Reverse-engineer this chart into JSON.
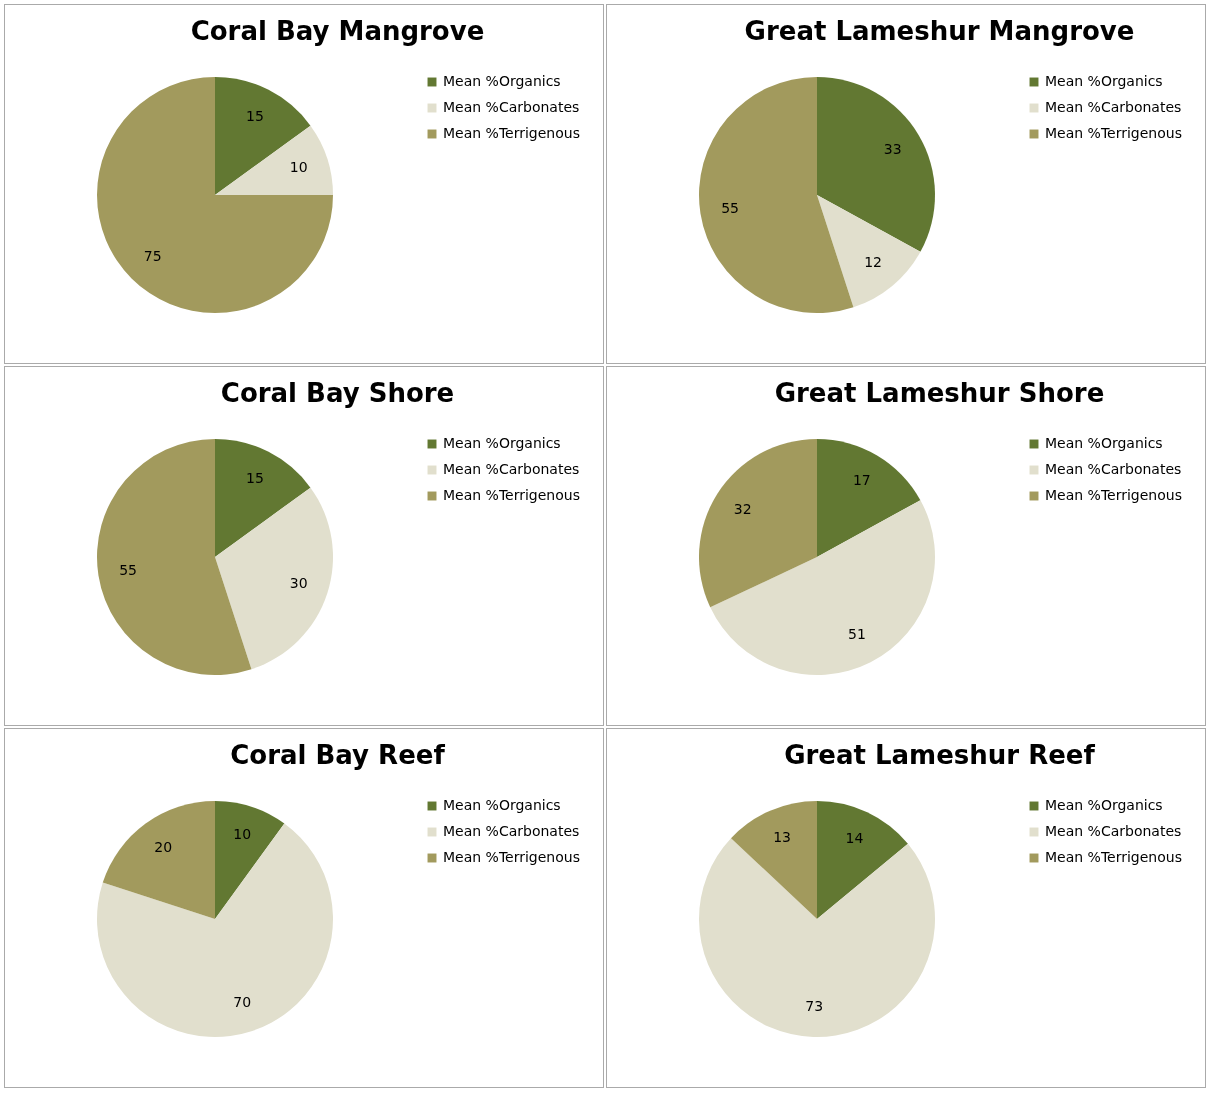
{
  "chart_data": [
    {
      "type": "pie",
      "title": "Coral Bay Mangrove",
      "categories": [
        "Mean %Organics",
        "Mean %Carbonates",
        "Mean %Terrigenous"
      ],
      "values": [
        15,
        10,
        75
      ],
      "colors": [
        "#627832",
        "#e1dfcd",
        "#a29a5d"
      ],
      "data_labels": true,
      "legend": "right"
    },
    {
      "type": "pie",
      "title": "Great Lameshur Mangrove",
      "categories": [
        "Mean %Organics",
        "Mean %Carbonates",
        "Mean %Terrigenous"
      ],
      "values": [
        33,
        12,
        55
      ],
      "colors": [
        "#627832",
        "#e1dfcd",
        "#a29a5d"
      ],
      "data_labels": true,
      "legend": "right"
    },
    {
      "type": "pie",
      "title": "Coral Bay Shore",
      "categories": [
        "Mean %Organics",
        "Mean %Carbonates",
        "Mean %Terrigenous"
      ],
      "values": [
        15,
        30,
        55
      ],
      "colors": [
        "#627832",
        "#e1dfcd",
        "#a29a5d"
      ],
      "data_labels": true,
      "legend": "right"
    },
    {
      "type": "pie",
      "title": "Great Lameshur Shore",
      "categories": [
        "Mean %Organics",
        "Mean %Carbonates",
        "Mean %Terrigenous"
      ],
      "values": [
        17,
        51,
        32
      ],
      "colors": [
        "#627832",
        "#e1dfcd",
        "#a29a5d"
      ],
      "data_labels": true,
      "legend": "right"
    },
    {
      "type": "pie",
      "title": "Coral Bay Reef",
      "categories": [
        "Mean %Organics",
        "Mean %Carbonates",
        "Mean %Terrigenous"
      ],
      "values": [
        10,
        70,
        20
      ],
      "colors": [
        "#627832",
        "#e1dfcd",
        "#a29a5d"
      ],
      "data_labels": true,
      "legend": "right"
    },
    {
      "type": "pie",
      "title": "Great Lameshur Reef",
      "categories": [
        "Mean %Organics",
        "Mean %Carbonates",
        "Mean %Terrigenous"
      ],
      "values": [
        14,
        73,
        13
      ],
      "colors": [
        "#627832",
        "#e1dfcd",
        "#a29a5d"
      ],
      "data_labels": true,
      "legend": "right"
    }
  ]
}
